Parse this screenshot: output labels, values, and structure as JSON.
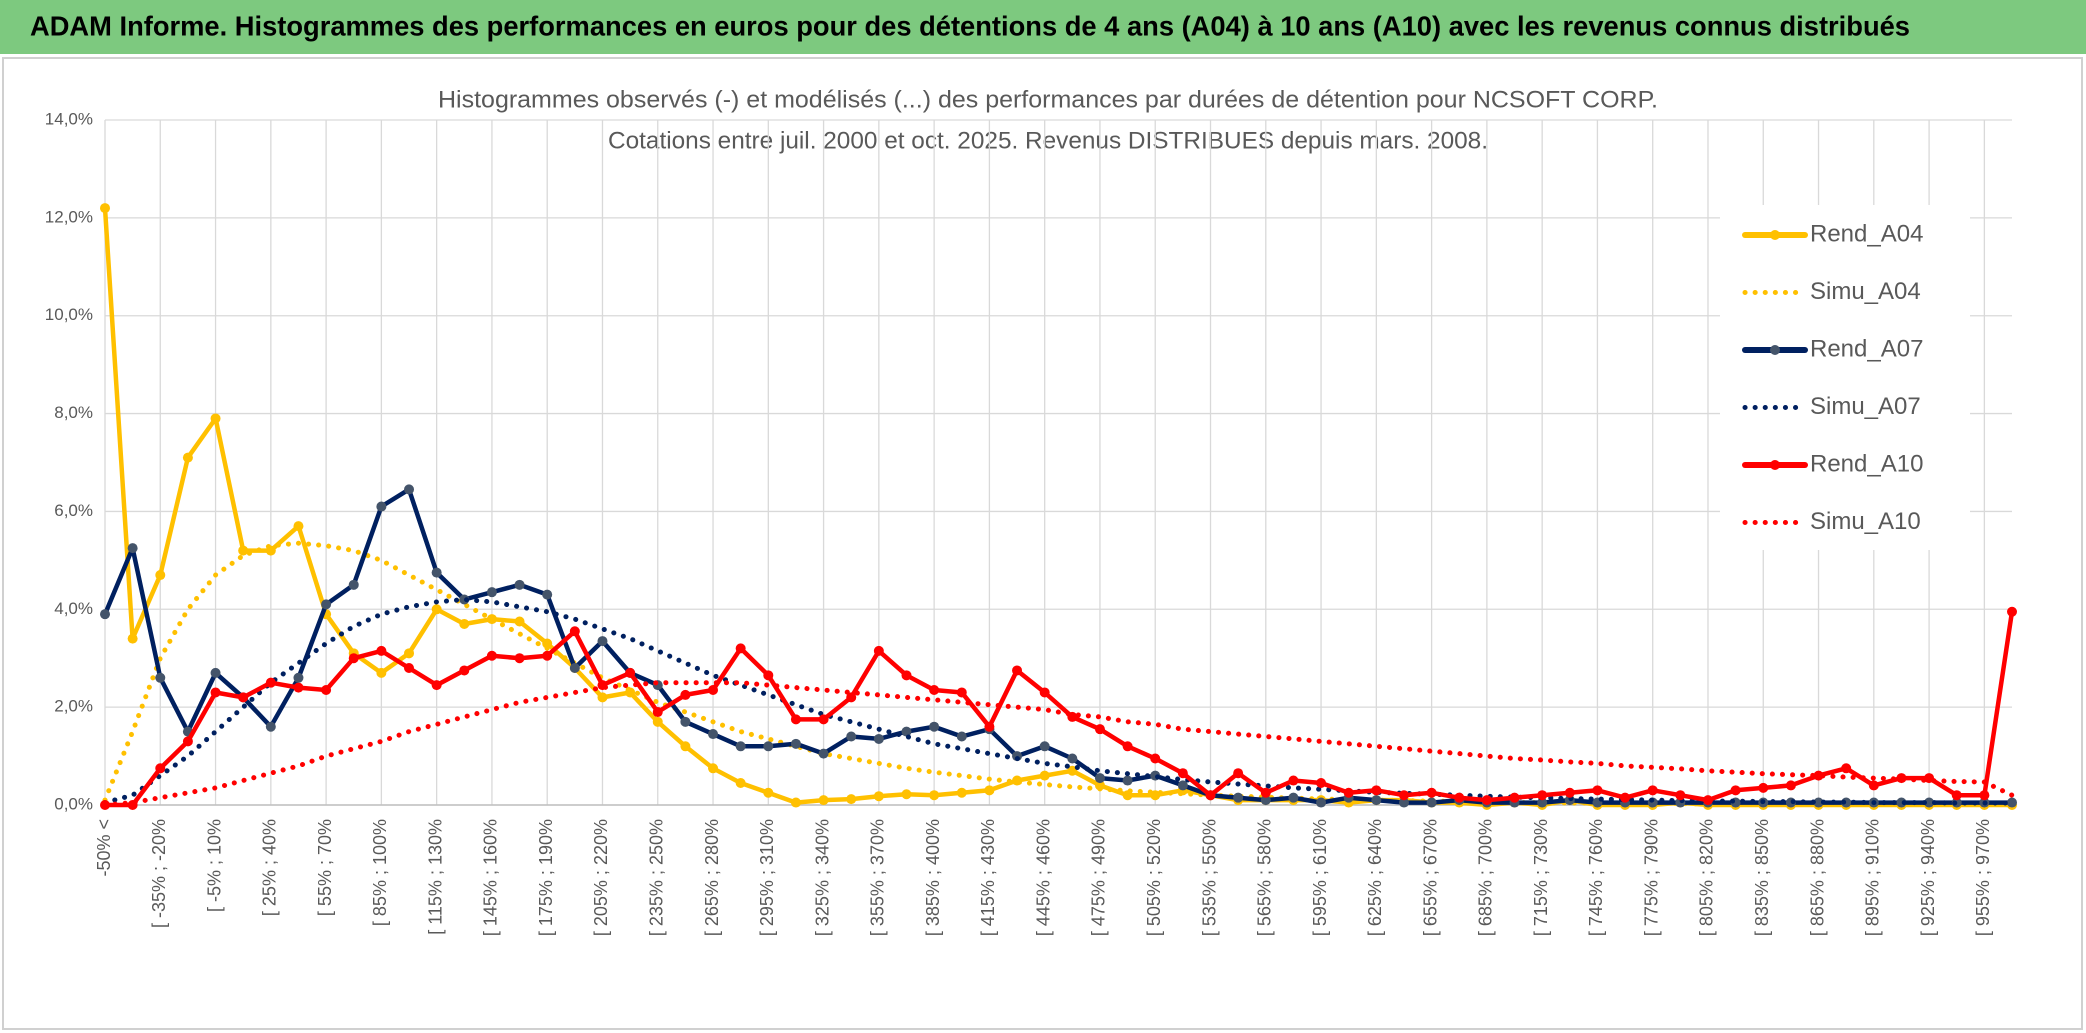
{
  "banner": "ADAM Informe. Histogrammes des performances en euros pour des détentions de 4 ans (A04) à 10 ans (A10) avec les revenus connus distribués",
  "chart_data": {
    "type": "line",
    "title": "Histogrammes observés (-) et modélisés (...) des performances par durées de détention pour NCSOFT CORP.",
    "subtitle": "Cotations entre juil. 2000 et oct. 2025. Revenus DISTRIBUES depuis mars. 2008.",
    "categories": [
      "-50% <",
      null,
      "[ -35% ; -20%",
      null,
      "[ -5% ; 10%",
      null,
      "[ 25% ; 40%",
      null,
      "[ 55% ; 70%",
      null,
      "[ 85% ; 100%",
      null,
      "[ 115% ; 130%",
      null,
      "[ 145% ; 160%",
      null,
      "[ 175% ; 190%",
      null,
      "[ 205% ; 220%",
      null,
      "[ 235% ; 250%",
      null,
      "[ 265% ; 280%",
      null,
      "[ 295% ; 310%",
      null,
      "[ 325% ; 340%",
      null,
      "[ 355% ; 370%",
      null,
      "[ 385% ; 400%",
      null,
      "[ 415% ; 430%",
      null,
      "[ 445% ; 460%",
      null,
      "[ 475% ; 490%",
      null,
      "[ 505% ; 520%",
      null,
      "[ 535% ; 550%",
      null,
      "[ 565% ; 580%",
      null,
      "[ 595% ; 610%",
      null,
      "[ 625% ; 640%",
      null,
      "[ 655% ; 670%",
      null,
      "[ 685% ; 700%",
      null,
      "[ 715% ; 730%",
      null,
      "[ 745% ; 760%",
      null,
      "[ 775% ; 790%",
      null,
      "[ 805% ; 820%",
      null,
      "[ 835% ; 850%",
      null,
      "[ 865% ; 880%",
      null,
      "[ 895% ; 910%",
      null,
      "[ 925% ; 940%",
      null,
      "[ 955% ; 970%",
      null
    ],
    "series": [
      {
        "name": "Rend_A04",
        "color": "#ffc000",
        "dash": "solid",
        "markers": true,
        "values": [
          12.2,
          3.4,
          4.7,
          7.1,
          7.9,
          5.2,
          5.2,
          5.7,
          3.9,
          3.1,
          2.7,
          3.1,
          4.0,
          3.7,
          3.8,
          3.75,
          3.3,
          2.8,
          2.2,
          2.3,
          1.7,
          1.2,
          0.75,
          0.45,
          0.25,
          0.05,
          0.1,
          0.12,
          0.18,
          0.22,
          0.2,
          0.25,
          0.3,
          0.5,
          0.6,
          0.7,
          0.4,
          0.2,
          0.2,
          0.3,
          0.2,
          0.1,
          0.1,
          0.1,
          0.1,
          0.05,
          0.1,
          0.1,
          0.05,
          0.05,
          0,
          0.05,
          0,
          0.1,
          0,
          0,
          0,
          0.05,
          0,
          0,
          0,
          0,
          0,
          0,
          0,
          0,
          0,
          0,
          0,
          0
        ]
      },
      {
        "name": "Simu_A04",
        "color": "#ffc000",
        "dash": "dotted",
        "markers": false,
        "values": [
          0.1,
          1.5,
          3.0,
          4.0,
          4.7,
          5.1,
          5.3,
          5.35,
          5.3,
          5.2,
          5.0,
          4.7,
          4.4,
          4.1,
          3.8,
          3.5,
          3.2,
          2.9,
          2.6,
          2.35,
          2.1,
          1.9,
          1.7,
          1.5,
          1.35,
          1.2,
          1.05,
          0.95,
          0.85,
          0.75,
          0.67,
          0.6,
          0.53,
          0.47,
          0.42,
          0.37,
          0.33,
          0.29,
          0.26,
          0.23,
          0.2,
          0.18,
          0.16,
          0.14,
          0.12,
          0.11,
          0.1,
          0.09,
          0.08,
          0.07,
          0.06,
          0.05,
          0.05,
          0.04,
          0.04,
          0.03,
          0.03,
          0.03,
          0.02,
          0.02,
          0.02,
          0.02,
          0.01,
          0.01,
          0.01,
          0.01,
          0.01,
          0.01,
          0.01,
          0.01
        ]
      },
      {
        "name": "Rend_A07",
        "color": "#002060",
        "dash": "solid",
        "markers": true,
        "values": [
          3.9,
          5.25,
          2.6,
          1.5,
          2.7,
          2.2,
          1.6,
          2.6,
          4.1,
          4.5,
          6.1,
          6.45,
          4.75,
          4.2,
          4.35,
          4.5,
          4.3,
          2.8,
          3.35,
          2.7,
          2.45,
          1.7,
          1.45,
          1.2,
          1.2,
          1.25,
          1.05,
          1.4,
          1.35,
          1.5,
          1.6,
          1.4,
          1.55,
          1.0,
          1.2,
          0.95,
          0.55,
          0.5,
          0.6,
          0.4,
          0.2,
          0.15,
          0.1,
          0.15,
          0.05,
          0.15,
          0.1,
          0.05,
          0.05,
          0.1,
          0.05,
          0.05,
          0.05,
          0.1,
          0.05,
          0.05,
          0.05,
          0.05,
          0.05,
          0.05,
          0.05,
          0.05,
          0.05,
          0.05,
          0.05,
          0.05,
          0.05,
          0.05,
          0.05,
          0.05
        ]
      },
      {
        "name": "Simu_A07",
        "color": "#002060",
        "dash": "dotted",
        "markers": false,
        "values": [
          0.05,
          0.2,
          0.6,
          1.0,
          1.5,
          2.0,
          2.5,
          2.9,
          3.3,
          3.65,
          3.9,
          4.05,
          4.15,
          4.2,
          4.15,
          4.05,
          3.95,
          3.8,
          3.6,
          3.4,
          3.15,
          2.9,
          2.65,
          2.45,
          2.25,
          2.05,
          1.85,
          1.7,
          1.55,
          1.4,
          1.25,
          1.15,
          1.05,
          0.95,
          0.85,
          0.78,
          0.7,
          0.64,
          0.58,
          0.52,
          0.47,
          0.43,
          0.39,
          0.35,
          0.32,
          0.29,
          0.26,
          0.24,
          0.22,
          0.2,
          0.18,
          0.16,
          0.15,
          0.13,
          0.12,
          0.11,
          0.1,
          0.09,
          0.08,
          0.08,
          0.07,
          0.07,
          0.06,
          0.06,
          0.05,
          0.05,
          0.05,
          0.04,
          0.04,
          0.04
        ]
      },
      {
        "name": "Rend_A10",
        "color": "#ff0000",
        "dash": "solid",
        "markers": true,
        "values": [
          0,
          0,
          0.75,
          1.3,
          2.3,
          2.2,
          2.5,
          2.4,
          2.35,
          3.0,
          3.15,
          2.8,
          2.45,
          2.75,
          3.05,
          3.0,
          3.05,
          3.55,
          2.45,
          2.7,
          1.9,
          2.25,
          2.35,
          3.2,
          2.65,
          1.75,
          1.75,
          2.2,
          3.15,
          2.65,
          2.35,
          2.3,
          1.6,
          2.75,
          2.3,
          1.8,
          1.55,
          1.2,
          0.95,
          0.65,
          0.2,
          0.65,
          0.25,
          0.5,
          0.45,
          0.25,
          0.3,
          0.2,
          0.25,
          0.15,
          0.1,
          0.15,
          0.2,
          0.25,
          0.3,
          0.15,
          0.3,
          0.2,
          0.1,
          0.3,
          0.35,
          0.4,
          0.6,
          0.75,
          0.4,
          0.55,
          0.55,
          0.2,
          0.2,
          3.95
        ]
      },
      {
        "name": "Simu_A10",
        "color": "#ff0000",
        "dash": "dotted",
        "markers": false,
        "values": [
          0,
          0.05,
          0.15,
          0.25,
          0.35,
          0.5,
          0.65,
          0.8,
          1.0,
          1.15,
          1.3,
          1.5,
          1.65,
          1.8,
          1.95,
          2.1,
          2.2,
          2.3,
          2.4,
          2.45,
          2.5,
          2.5,
          2.5,
          2.5,
          2.45,
          2.4,
          2.35,
          2.3,
          2.25,
          2.2,
          2.15,
          2.1,
          2.05,
          2.0,
          1.95,
          1.85,
          1.8,
          1.7,
          1.65,
          1.55,
          1.5,
          1.45,
          1.4,
          1.35,
          1.3,
          1.25,
          1.2,
          1.15,
          1.1,
          1.05,
          1.0,
          0.95,
          0.92,
          0.88,
          0.85,
          0.8,
          0.77,
          0.74,
          0.7,
          0.67,
          0.64,
          0.62,
          0.6,
          0.57,
          0.55,
          0.53,
          0.5,
          0.48,
          0.47,
          0.2
        ]
      }
    ],
    "ylim": [
      0,
      14
    ],
    "yticks": [
      {
        "value": 0,
        "label": "0,0%"
      },
      {
        "value": 2,
        "label": "2,0%"
      },
      {
        "value": 4,
        "label": "4,0%"
      },
      {
        "value": 6,
        "label": "6,0%"
      },
      {
        "value": 8,
        "label": "8,0%"
      },
      {
        "value": 10,
        "label": "10,0%"
      },
      {
        "value": 12,
        "label": "12,0%"
      },
      {
        "value": 14,
        "label": "14,0%"
      }
    ],
    "grid": true,
    "legend": "right"
  }
}
